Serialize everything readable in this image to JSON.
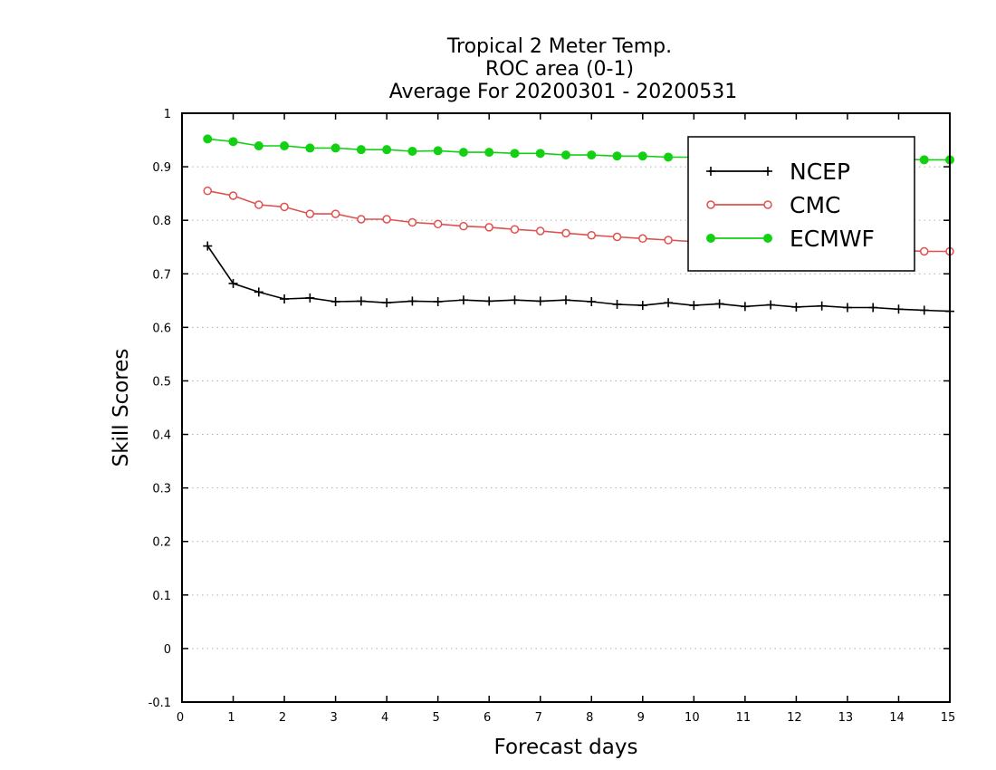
{
  "chart_data": {
    "type": "line",
    "title": [
      "Tropical 2 Meter Temp.",
      "ROC area (0-1)",
      "Average For 20200301 - 20200531"
    ],
    "xlabel": "Forecast days",
    "ylabel": "Skill Scores",
    "xlim": [
      0,
      15
    ],
    "ylim": [
      -0.1,
      1
    ],
    "x_ticks": [
      0,
      1,
      2,
      3,
      4,
      5,
      6,
      7,
      8,
      9,
      10,
      11,
      12,
      13,
      14,
      15
    ],
    "x_tick_labels": [
      "0",
      "1",
      "2",
      "3",
      "4",
      "5",
      "6",
      "7",
      "8",
      "9",
      "10",
      "11",
      "12",
      "13",
      "14",
      "15"
    ],
    "y_ticks": [
      -0.1,
      0,
      0.1,
      0.2,
      0.3,
      0.4,
      0.5,
      0.6,
      0.7,
      0.8,
      0.9,
      1
    ],
    "y_tick_labels": [
      "-0.1",
      "0",
      "0.1",
      "0.2",
      "0.3",
      "0.4",
      "0.5",
      "0.6",
      "0.7",
      "0.8",
      "0.9",
      "1"
    ],
    "grid": "horizontal-dotted",
    "legend_position": "top-right",
    "x": [
      0.5,
      1,
      1.5,
      2,
      2.5,
      3,
      3.5,
      4,
      4.5,
      5,
      5.5,
      6,
      6.5,
      7,
      7.5,
      8,
      8.5,
      9,
      9.5,
      10,
      10.5,
      11,
      11.5,
      12,
      12.5,
      13,
      13.5,
      14,
      14.5,
      15
    ],
    "series": [
      {
        "name": "NCEP",
        "color": "#000000",
        "marker": "plus",
        "values": [
          0.752,
          0.682,
          0.666,
          0.653,
          0.655,
          0.648,
          0.649,
          0.646,
          0.649,
          0.648,
          0.651,
          0.649,
          0.651,
          0.649,
          0.651,
          0.648,
          0.643,
          0.641,
          0.646,
          0.641,
          0.644,
          0.639,
          0.642,
          0.638,
          0.64,
          0.637,
          0.637,
          0.634,
          0.632,
          0.63
        ]
      },
      {
        "name": "CMC",
        "color": "#e0504e",
        "marker": "open-circle",
        "values": [
          0.855,
          0.846,
          0.829,
          0.825,
          0.812,
          0.812,
          0.802,
          0.802,
          0.796,
          0.793,
          0.789,
          0.787,
          0.783,
          0.78,
          0.776,
          0.772,
          0.769,
          0.766,
          0.763,
          0.76,
          0.758,
          0.756,
          0.754,
          0.752,
          0.75,
          0.748,
          0.746,
          0.744,
          0.742,
          0.742
        ]
      },
      {
        "name": "ECMWF",
        "color": "#13d013",
        "marker": "filled-circle",
        "values": [
          0.952,
          0.947,
          0.939,
          0.939,
          0.935,
          0.935,
          0.932,
          0.932,
          0.929,
          0.93,
          0.927,
          0.927,
          0.925,
          0.925,
          0.922,
          0.922,
          0.92,
          0.92,
          0.918,
          0.918,
          0.917,
          0.917,
          0.916,
          0.916,
          0.915,
          0.915,
          0.914,
          0.914,
          0.913,
          0.913
        ]
      }
    ]
  }
}
